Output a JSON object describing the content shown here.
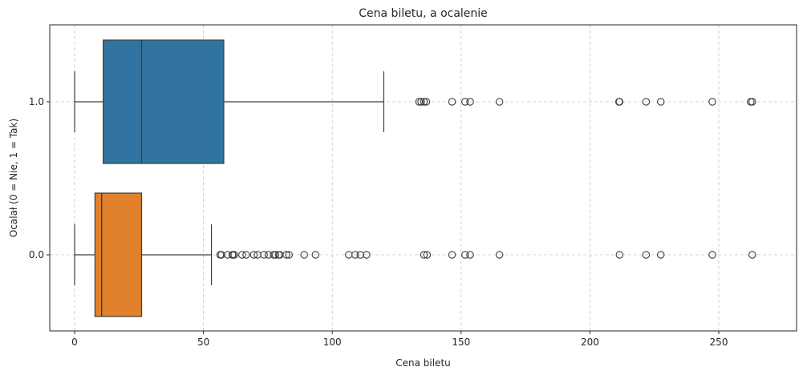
{
  "chart_data": {
    "type": "boxplot",
    "title": "Cena biletu, a ocalenie",
    "xlabel": "Cena biletu",
    "ylabel": "Ocalał (0 = Nie, 1 = Tak)",
    "xlim": [
      -9,
      280
    ],
    "x_ticks": [
      0,
      50,
      100,
      150,
      200,
      250
    ],
    "categories": [
      "1.0",
      "0.0"
    ],
    "grid": true,
    "series": [
      {
        "category": "1.0",
        "color": "#3274a1",
        "whisker_low": 0,
        "q1": 11.1,
        "median": 26.0,
        "q3": 57.9,
        "whisker_high": 120.0,
        "outliers": [
          133.7,
          134.5,
          135.6,
          136.5,
          146.5,
          151.55,
          153.5,
          164.9,
          211.3,
          211.5,
          221.8,
          227.5,
          247.5,
          262.4,
          263.0
        ]
      },
      {
        "category": "0.0",
        "color": "#e1812c",
        "whisker_low": 0,
        "q1": 7.9,
        "median": 10.5,
        "q3": 26.0,
        "whisker_high": 53.1,
        "outliers": [
          56.5,
          57.0,
          59.4,
          61.2,
          61.4,
          62.0,
          65.0,
          66.6,
          69.55,
          71.0,
          73.5,
          75.25,
          77.3,
          77.95,
          79.2,
          79.65,
          82.2,
          83.2,
          89.1,
          93.5,
          106.4,
          108.9,
          110.9,
          113.3,
          135.6,
          136.8,
          146.5,
          151.55,
          153.5,
          164.9,
          211.5,
          221.8,
          227.5,
          247.5,
          263.0
        ]
      }
    ]
  }
}
